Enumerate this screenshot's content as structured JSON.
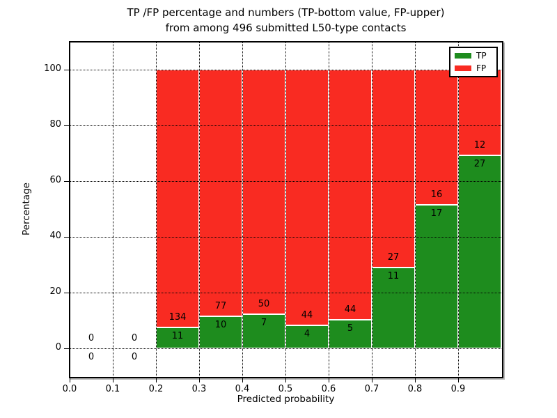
{
  "chart_data": {
    "type": "bar",
    "stacked": true,
    "title_line1": "TP /FP percentage and numbers (TP-bottom value, FP-upper)",
    "title_line2": "from among 496 submitted L50-type contacts",
    "xlabel": "Predicted probability",
    "ylabel": "Percentage",
    "xlim": [
      0.0,
      1.0
    ],
    "ylim": [
      -10,
      110
    ],
    "xticks": [
      "0.0",
      "0.1",
      "0.2",
      "0.3",
      "0.4",
      "0.5",
      "0.6",
      "0.7",
      "0.8",
      "0.9"
    ],
    "yticks": [
      0,
      20,
      40,
      60,
      80,
      100
    ],
    "grid": true,
    "grid_style": "dotted",
    "legend_position": "upper right",
    "legend": [
      {
        "name": "tp",
        "label": "TP",
        "color": "#1e8c1e"
      },
      {
        "name": "fp",
        "label": "FP",
        "color": "#f92b22"
      }
    ],
    "bar_edge_color": "#ffffff",
    "note": "Each bar stacked to 100%; green bottom = TP share, red top = FP share; labels are raw counts",
    "bins": [
      {
        "x0": 0.0,
        "x1": 0.1,
        "tp": 0,
        "fp": 0
      },
      {
        "x0": 0.1,
        "x1": 0.2,
        "tp": 0,
        "fp": 0
      },
      {
        "x0": 0.2,
        "x1": 0.3,
        "tp": 11,
        "fp": 134
      },
      {
        "x0": 0.3,
        "x1": 0.4,
        "tp": 10,
        "fp": 77
      },
      {
        "x0": 0.4,
        "x1": 0.5,
        "tp": 7,
        "fp": 50
      },
      {
        "x0": 0.5,
        "x1": 0.6,
        "tp": 4,
        "fp": 44
      },
      {
        "x0": 0.6,
        "x1": 0.7,
        "tp": 5,
        "fp": 44
      },
      {
        "x0": 0.7,
        "x1": 0.8,
        "tp": 11,
        "fp": 27
      },
      {
        "x0": 0.8,
        "x1": 0.9,
        "tp": 17,
        "fp": 16
      },
      {
        "x0": 0.9,
        "x1": 1.0,
        "tp": 27,
        "fp": 12
      }
    ]
  }
}
